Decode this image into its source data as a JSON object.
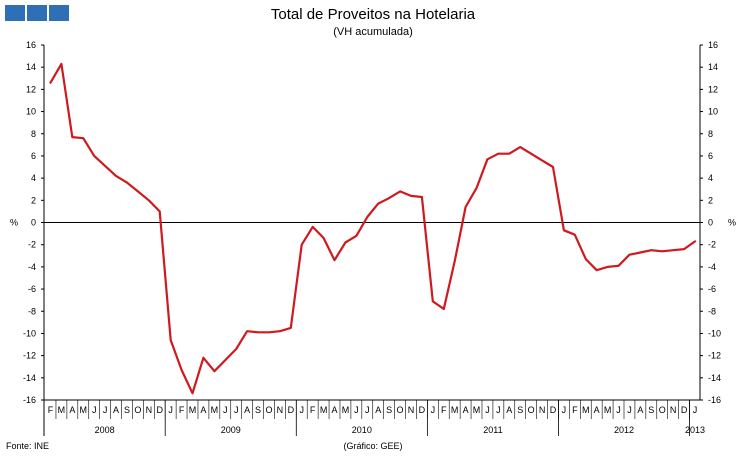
{
  "header": {
    "title": "Total de Proveitos na Hotelaria",
    "subtitle": "(VH acumulada)"
  },
  "footer": {
    "source": "Fonte: INE",
    "credit": "(Gráfico: GEE)"
  },
  "colors": {
    "line": "#d0191e",
    "logo": "#2f6fb6"
  },
  "chart_data": {
    "type": "line",
    "title": "Total de Proveitos na Hotelaria",
    "subtitle": "(VH acumulada)",
    "ylabel": "%",
    "ylabel_right": "%",
    "ylim": [
      -16,
      16
    ],
    "yticks": [
      16,
      14,
      12,
      10,
      8,
      6,
      4,
      2,
      0,
      -2,
      -4,
      -6,
      -8,
      -10,
      -12,
      -14,
      -16
    ],
    "grid": false,
    "legend": "none",
    "month_labels": [
      "F",
      "M",
      "A",
      "M",
      "J",
      "J",
      "A",
      "S",
      "O",
      "N",
      "D",
      "J",
      "F",
      "M",
      "A",
      "M",
      "J",
      "J",
      "A",
      "S",
      "O",
      "N",
      "D",
      "J",
      "F",
      "M",
      "A",
      "M",
      "J",
      "J",
      "A",
      "S",
      "O",
      "N",
      "D",
      "J",
      "F",
      "M",
      "A",
      "M",
      "J",
      "J",
      "A",
      "S",
      "O",
      "N",
      "D",
      "J",
      "F",
      "M",
      "A",
      "M",
      "J",
      "J",
      "A",
      "S",
      "O",
      "N",
      "D",
      "J"
    ],
    "year_labels": [
      "2008",
      "2009",
      "2010",
      "2011",
      "2012",
      "2013"
    ],
    "series": [
      {
        "values": [
          12.6,
          14.3,
          7.7,
          7.6,
          6.0,
          5.1,
          4.2,
          3.6,
          2.8,
          2.0,
          1.0,
          -10.6,
          -13.3,
          -15.4,
          -12.2,
          -13.4,
          -12.4,
          -11.4,
          -9.8,
          -9.9,
          -9.9,
          -9.8,
          -9.5,
          -2.0,
          -0.4,
          -1.4,
          -3.4,
          -1.8,
          -1.2,
          0.5,
          1.7,
          2.2,
          2.8,
          2.4,
          2.3,
          -7.1,
          -7.8,
          -3.5,
          1.4,
          3.1,
          5.7,
          6.2,
          6.2,
          6.8,
          6.2,
          5.6,
          5.0,
          -0.7,
          -1.1,
          -3.3,
          -4.3,
          -4.0,
          -3.9,
          -2.9,
          -2.7,
          -2.5,
          -2.6,
          -2.5,
          -2.4,
          -1.7
        ]
      }
    ]
  }
}
